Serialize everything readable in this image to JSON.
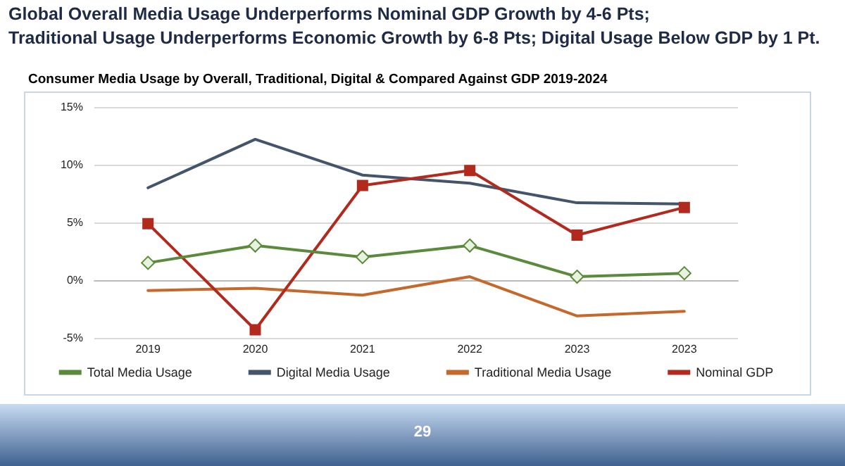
{
  "chart_data": {
    "type": "line",
    "title": "Global Overall Media Usage Underperforms Nominal GDP Growth by 4-6 Pts;\nTraditional Usage Underperforms Economic Growth by 6-8 Pts; Digital Usage Below GDP by 1 Pt.",
    "subtitle": "Consumer Media Usage by Overall, Traditional, Digital & Compared Against GDP 2019-2024",
    "categories": [
      "2019",
      "2020",
      "2021",
      "2022",
      "2023",
      "2023"
    ],
    "series": [
      {
        "name": "Total Media Usage",
        "color": "#5b8a3c",
        "marker": "diamond",
        "values": [
          1.5,
          3.0,
          2.0,
          3.0,
          0.3,
          0.6
        ]
      },
      {
        "name": "Digital Media Usage",
        "color": "#44546a",
        "marker": "none",
        "values": [
          8.0,
          12.2,
          9.1,
          8.4,
          6.7,
          6.6
        ]
      },
      {
        "name": "Traditional Media Usage",
        "color": "#c5682c",
        "marker": "none",
        "values": [
          -0.9,
          -0.7,
          -1.3,
          0.3,
          -3.1,
          -2.7
        ]
      },
      {
        "name": "Nominal GDP",
        "color": "#b22a1e",
        "marker": "square",
        "values": [
          4.9,
          -4.3,
          8.2,
          9.5,
          3.9,
          6.3
        ]
      }
    ],
    "ylim": [
      -5,
      15
    ],
    "yticks": [
      {
        "value": -5,
        "label": "-5%"
      },
      {
        "value": 0,
        "label": "0%"
      },
      {
        "value": 5,
        "label": "5%"
      },
      {
        "value": 10,
        "label": "10%"
      },
      {
        "value": 15,
        "label": "15%"
      }
    ],
    "grid": "y",
    "legend": "bottom",
    "annotations": [
      "29"
    ]
  }
}
